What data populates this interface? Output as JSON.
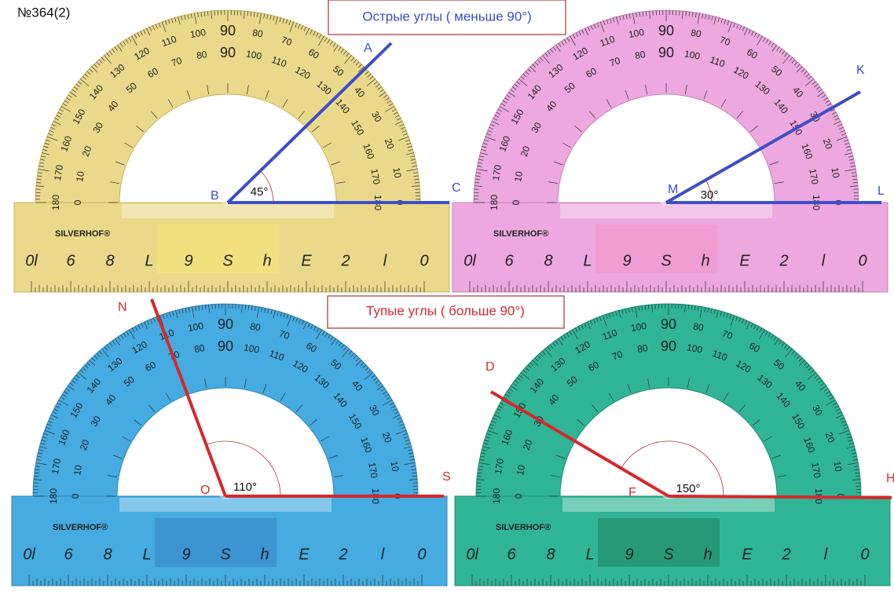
{
  "problem_number": "№364(2)",
  "captions": [
    {
      "text": "Острые углы   ( меньше 90°)"
    },
    {
      "text": "Тупые углы  ( больше  90°)"
    }
  ],
  "protractor": {
    "brand": "SILVERHOF®",
    "outer_scale": [
      0,
      10,
      20,
      30,
      40,
      50,
      60,
      70,
      80,
      90,
      100,
      110,
      120,
      130,
      140,
      150,
      160,
      170,
      180
    ],
    "inner_scale": [
      180,
      170,
      160,
      150,
      140,
      130,
      120,
      110,
      100,
      90,
      80,
      70,
      60,
      50,
      40,
      30,
      20,
      10,
      0
    ],
    "ruler_digits": [
      "0l",
      "6",
      "8",
      "L",
      "9",
      "S",
      "h",
      "E",
      "2",
      "l",
      "0"
    ]
  },
  "angles": [
    {
      "vertex": "B",
      "ray1": "A",
      "ray2": "C",
      "measure": "45°"
    },
    {
      "vertex": "M",
      "ray1": "K",
      "ray2": "L",
      "measure": "30°"
    },
    {
      "vertex": "O",
      "ray1": "N",
      "ray2": "S",
      "measure": "110°"
    },
    {
      "vertex": "F",
      "ray1": "D",
      "ray2": "H",
      "measure": "150°"
    }
  ]
}
